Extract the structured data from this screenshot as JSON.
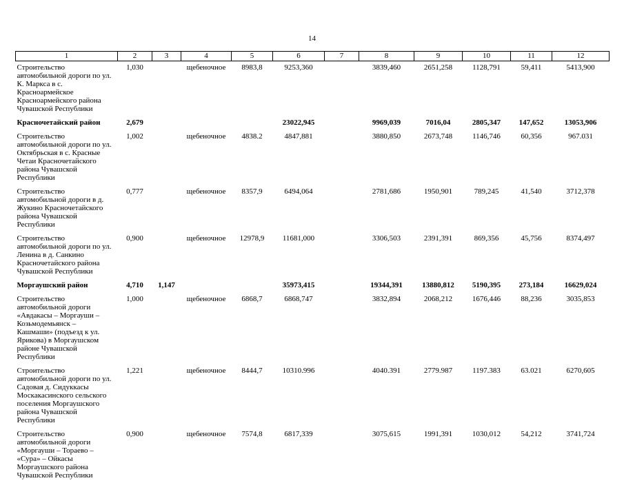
{
  "page": {
    "number": "14"
  },
  "table": {
    "column_numbers": [
      "1",
      "2",
      "3",
      "4",
      "5",
      "6",
      "7",
      "8",
      "9",
      "10",
      "11",
      "12"
    ],
    "rows": [
      {
        "bold": false,
        "cells": [
          "Строительство автомобильной дороги по ул. К. Маркса в с. Красноармейское Красноармейского района Чувашской Республики",
          "1,030",
          "",
          "щебеночное",
          "8983,8",
          "9253,360",
          "",
          "3839,460",
          "2651,258",
          "1128,791",
          "59,411",
          "5413,900"
        ]
      },
      {
        "bold": true,
        "cells": [
          "Красночетайский район",
          "2,679",
          "",
          "",
          "",
          "23022,945",
          "",
          "9969,039",
          "7016,04",
          "2805,347",
          "147,652",
          "13053,906"
        ]
      },
      {
        "bold": false,
        "cells": [
          "Строительство автомобильной дороги по ул. Октябрьская в с. Красные Четаи Красночетайского района Чувашской Республики",
          "1,002",
          "",
          "щебеночное",
          "4838.2",
          "4847,881",
          "",
          "3880,850",
          "2673,748",
          "1146,746",
          "60,356",
          "967.031"
        ]
      },
      {
        "bold": false,
        "cells": [
          "Строительство автомобильной дороги в д. Жукино Красночетайского района Чувашской Республики",
          "0,777",
          "",
          "щебеночное",
          "8357,9",
          "6494,064",
          "",
          "2781,686",
          "1950,901",
          "789,245",
          "41,540",
          "3712,378"
        ]
      },
      {
        "bold": false,
        "cells": [
          "Строительство автомобильной дороги по ул. Ленина в д. Санкино Красночетайского района Чувашской Республики",
          "0,900",
          "",
          "щебеночное",
          "12978,9",
          "11681,000",
          "",
          "3306,503",
          "2391,391",
          "869,356",
          "45,756",
          "8374,497"
        ]
      },
      {
        "bold": true,
        "cells": [
          "Моргаушский район",
          "4,710",
          "1,147",
          "",
          "",
          "35973,415",
          "",
          "19344,391",
          "13880,812",
          "5190,395",
          "273,184",
          "16629,024"
        ]
      },
      {
        "bold": false,
        "cells": [
          "Строительство автомобильной дороги «Авдакасы – Моргауши – Козьмодемьянск – Кашмаши» (подъезд к ул. Ярикова) в Моргаушском районе Чувашской Республики",
          "1,000",
          "",
          "щебеночное",
          "6868,7",
          "6868,747",
          "",
          "3832,894",
          "2068,212",
          "1676,446",
          "88,236",
          "3035,853"
        ]
      },
      {
        "bold": false,
        "cells": [
          "Строительство автомобильной дороги по ул. Садовая д. Сидуккасы Москакасинского сельского поселения Моргаушского района Чувашской Республики",
          "1,221",
          "",
          "щебеночное",
          "8444,7",
          "10310.996",
          "",
          "4040.391",
          "2779.987",
          "1197.383",
          "63.021",
          "6270,605"
        ]
      },
      {
        "bold": false,
        "cells": [
          "Строительство автомобильной дороги «Моргауши – Тораево – «Сура» – Ойкасы Моргаушского района Чувашской Республики",
          "0,900",
          "",
          "щебеночное",
          "7574,8",
          "6817,339",
          "",
          "3075,615",
          "1991,391",
          "1030,012",
          "54,212",
          "3741,724"
        ]
      }
    ]
  }
}
